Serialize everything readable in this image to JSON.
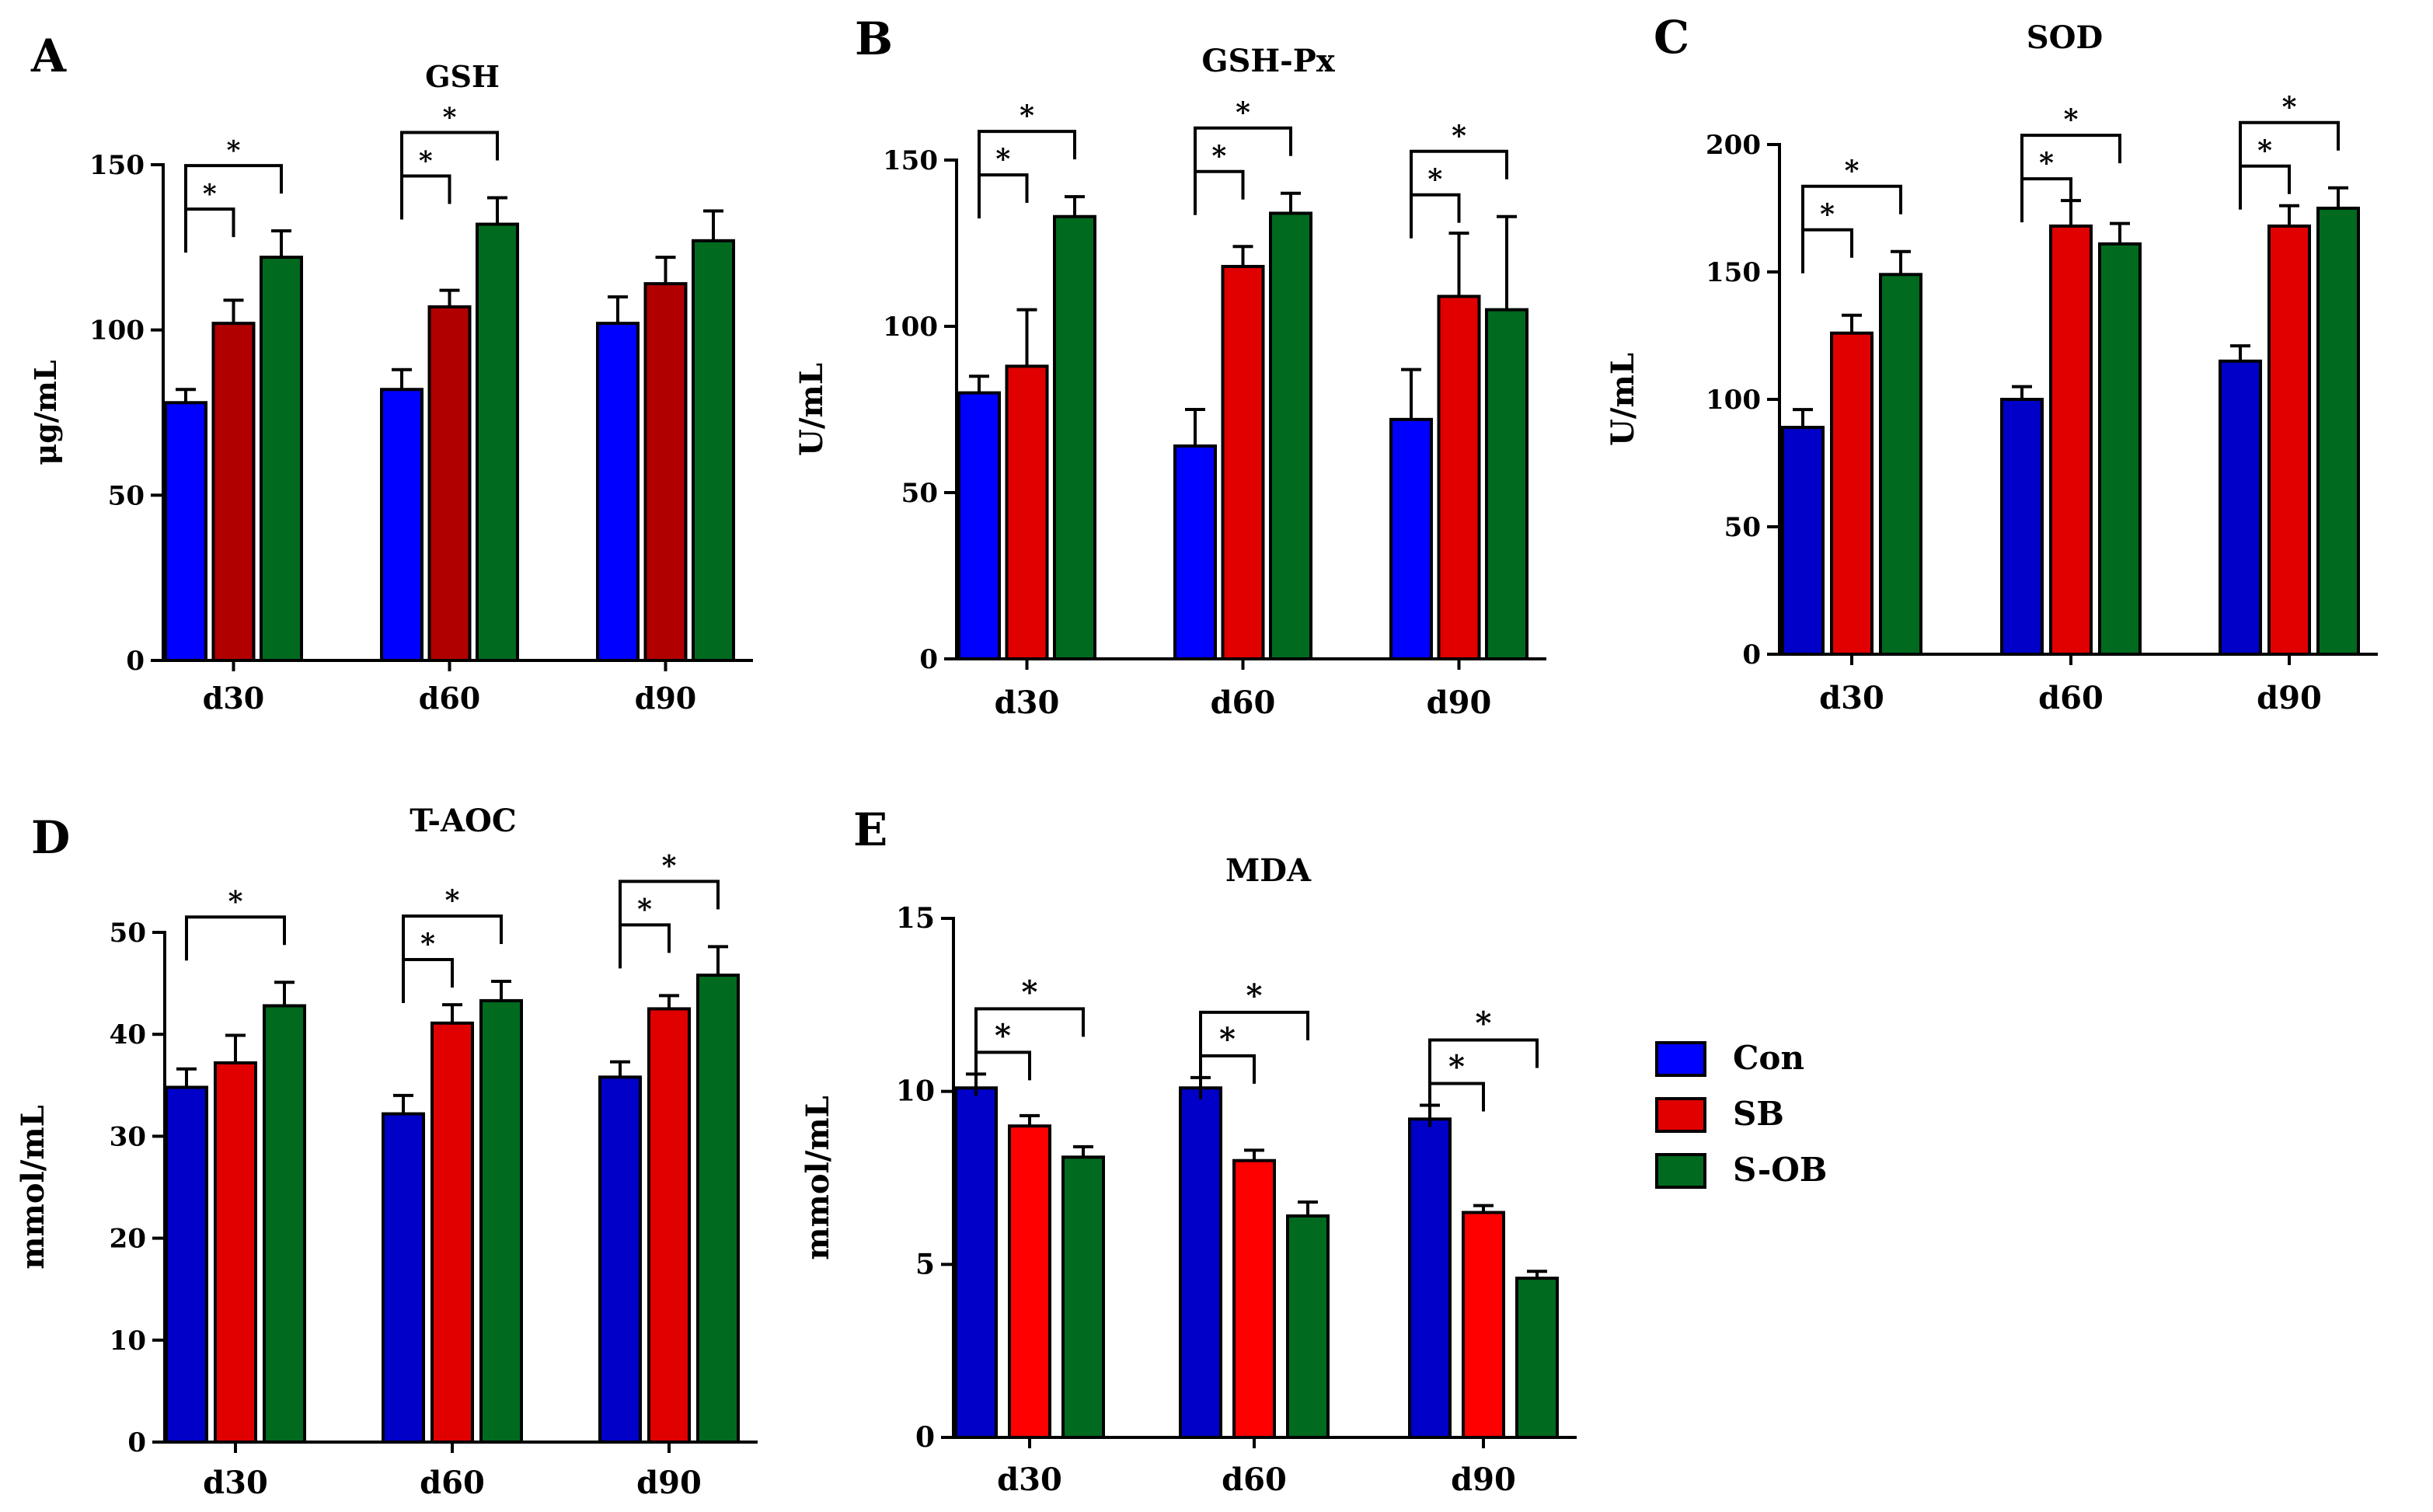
{
  "figure": {
    "legend": {
      "entries": [
        {
          "label": "Con",
          "color": "#0000ff"
        },
        {
          "label": "SB",
          "color": "#e00000"
        },
        {
          "label": "S-OB",
          "color": "#006a1f"
        }
      ]
    }
  },
  "chart_data": [
    {
      "panel": "A",
      "type": "bar",
      "title": "GSH",
      "ylabel": "μg/mL",
      "xlabel": "",
      "categories": [
        "d30",
        "d60",
        "d90"
      ],
      "ylim": [
        0,
        150
      ],
      "yticks": [
        0,
        50,
        100,
        150
      ],
      "series": [
        {
          "name": "Con",
          "color": "#0000ff",
          "values": [
            78,
            82,
            102
          ],
          "errors": [
            4,
            6,
            8
          ]
        },
        {
          "name": "SB",
          "color": "#b00000",
          "values": [
            102,
            107,
            114
          ],
          "errors": [
            7,
            5,
            8
          ]
        },
        {
          "name": "S-OB",
          "color": "#006a1f",
          "values": [
            122,
            132,
            127
          ],
          "errors": [
            8,
            8,
            9
          ]
        }
      ],
      "significance": [
        {
          "group": 0,
          "from": 0,
          "to": 1,
          "level": 1,
          "label": "*"
        },
        {
          "group": 0,
          "from": 0,
          "to": 2,
          "level": 2,
          "label": "*"
        },
        {
          "group": 1,
          "from": 0,
          "to": 1,
          "level": 1,
          "label": "*"
        },
        {
          "group": 1,
          "from": 0,
          "to": 2,
          "level": 2,
          "label": "*"
        }
      ]
    },
    {
      "panel": "B",
      "type": "bar",
      "title": "GSH-Px",
      "ylabel": "U/mL",
      "xlabel": "",
      "categories": [
        "d30",
        "d60",
        "d90"
      ],
      "ylim": [
        0,
        150
      ],
      "yticks": [
        0,
        50,
        100,
        150
      ],
      "series": [
        {
          "name": "Con",
          "color": "#0000ff",
          "values": [
            80,
            64,
            72
          ],
          "errors": [
            5,
            11,
            15
          ]
        },
        {
          "name": "SB",
          "color": "#e00000",
          "values": [
            88,
            118,
            109
          ],
          "errors": [
            17,
            6,
            19
          ]
        },
        {
          "name": "S-OB",
          "color": "#006a1f",
          "values": [
            133,
            134,
            105
          ],
          "errors": [
            6,
            6,
            28
          ]
        }
      ],
      "significance": [
        {
          "group": 0,
          "from": 0,
          "to": 1,
          "level": 1,
          "label": "*"
        },
        {
          "group": 0,
          "from": 0,
          "to": 2,
          "level": 2,
          "label": "*"
        },
        {
          "group": 1,
          "from": 0,
          "to": 1,
          "level": 1,
          "label": "*"
        },
        {
          "group": 1,
          "from": 0,
          "to": 2,
          "level": 2,
          "label": "*"
        },
        {
          "group": 2,
          "from": 0,
          "to": 1,
          "level": 1,
          "label": "*"
        },
        {
          "group": 2,
          "from": 0,
          "to": 2,
          "level": 2,
          "label": "*"
        }
      ]
    },
    {
      "panel": "C",
      "type": "bar",
      "title": "SOD",
      "ylabel": "U/mL",
      "xlabel": "",
      "categories": [
        "d30",
        "d60",
        "d90"
      ],
      "ylim": [
        0,
        200
      ],
      "yticks": [
        0,
        50,
        100,
        150,
        200
      ],
      "series": [
        {
          "name": "Con",
          "color": "#0000c8",
          "values": [
            89,
            100,
            115
          ],
          "errors": [
            7,
            5,
            6
          ]
        },
        {
          "name": "SB",
          "color": "#e00000",
          "values": [
            126,
            168,
            168
          ],
          "errors": [
            7,
            10,
            8
          ]
        },
        {
          "name": "S-OB",
          "color": "#006a1f",
          "values": [
            149,
            161,
            175
          ],
          "errors": [
            9,
            8,
            8
          ]
        }
      ],
      "significance": [
        {
          "group": 0,
          "from": 0,
          "to": 1,
          "level": 1,
          "label": "*"
        },
        {
          "group": 0,
          "from": 0,
          "to": 2,
          "level": 2,
          "label": "*"
        },
        {
          "group": 1,
          "from": 0,
          "to": 1,
          "level": 1,
          "label": "*"
        },
        {
          "group": 1,
          "from": 0,
          "to": 2,
          "level": 2,
          "label": "*"
        },
        {
          "group": 2,
          "from": 0,
          "to": 1,
          "level": 1,
          "label": "*"
        },
        {
          "group": 2,
          "from": 0,
          "to": 2,
          "level": 2,
          "label": "*"
        }
      ]
    },
    {
      "panel": "D",
      "type": "bar",
      "title": "T-AOC",
      "ylabel": "mmol/mL",
      "xlabel": "",
      "categories": [
        "d30",
        "d60",
        "d90"
      ],
      "ylim": [
        0,
        50
      ],
      "yticks": [
        0,
        10,
        20,
        30,
        40,
        50
      ],
      "series": [
        {
          "name": "Con",
          "color": "#0000c8",
          "values": [
            34.8,
            32.2,
            35.8
          ],
          "errors": [
            1.8,
            1.8,
            1.5
          ]
        },
        {
          "name": "SB",
          "color": "#e00000",
          "values": [
            37.2,
            41.1,
            42.5
          ],
          "errors": [
            2.7,
            1.8,
            1.3
          ]
        },
        {
          "name": "S-OB",
          "color": "#006a1f",
          "values": [
            42.8,
            43.3,
            45.8
          ],
          "errors": [
            2.3,
            1.9,
            2.8
          ]
        }
      ],
      "significance": [
        {
          "group": 0,
          "from": 0,
          "to": 2,
          "level": 2,
          "label": "*"
        },
        {
          "group": 1,
          "from": 0,
          "to": 1,
          "level": 1,
          "label": "*"
        },
        {
          "group": 1,
          "from": 0,
          "to": 2,
          "level": 2,
          "label": "*"
        },
        {
          "group": 2,
          "from": 0,
          "to": 1,
          "level": 1,
          "label": "*"
        },
        {
          "group": 2,
          "from": 0,
          "to": 2,
          "level": 2,
          "label": "*"
        }
      ]
    },
    {
      "panel": "E",
      "type": "bar",
      "title": "MDA",
      "ylabel": "mmol/mL",
      "xlabel": "",
      "categories": [
        "d30",
        "d60",
        "d90"
      ],
      "ylim": [
        0,
        15
      ],
      "yticks": [
        0,
        5,
        10,
        15
      ],
      "series": [
        {
          "name": "Con",
          "color": "#0000c8",
          "values": [
            10.1,
            10.1,
            9.2
          ],
          "errors": [
            0.4,
            0.3,
            0.4
          ]
        },
        {
          "name": "SB",
          "color": "#ff0000",
          "values": [
            9.0,
            8.0,
            6.5
          ],
          "errors": [
            0.3,
            0.3,
            0.2
          ]
        },
        {
          "name": "S-OB",
          "color": "#006a1f",
          "values": [
            8.1,
            6.4,
            4.6
          ],
          "errors": [
            0.3,
            0.4,
            0.2
          ]
        }
      ],
      "significance": [
        {
          "group": 0,
          "from": 0,
          "to": 1,
          "level": 1,
          "label": "*"
        },
        {
          "group": 0,
          "from": 0,
          "to": 2,
          "level": 2,
          "label": "*"
        },
        {
          "group": 1,
          "from": 0,
          "to": 1,
          "level": 1,
          "label": "*"
        },
        {
          "group": 1,
          "from": 0,
          "to": 2,
          "level": 2,
          "label": "*"
        },
        {
          "group": 2,
          "from": 0,
          "to": 1,
          "level": 1,
          "label": "*"
        },
        {
          "group": 2,
          "from": 0,
          "to": 2,
          "level": 2,
          "label": "*"
        }
      ]
    }
  ]
}
